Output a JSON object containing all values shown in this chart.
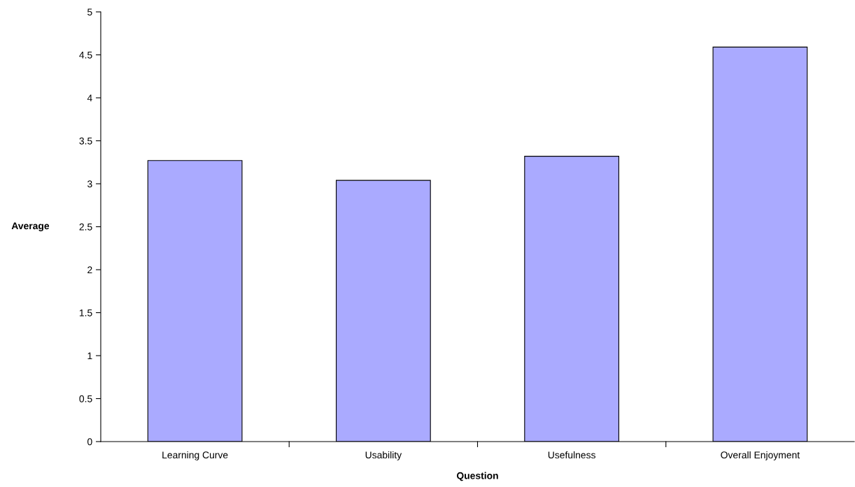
{
  "chart_data": {
    "type": "bar",
    "xlabel": "Question",
    "ylabel": "Average",
    "categories": [
      "Learning Curve",
      "Usability",
      "Usefulness",
      "Overall Enjoyment"
    ],
    "values": [
      3.27,
      3.04,
      3.32,
      4.59
    ],
    "color": "#aaaaff",
    "ylim": [
      0,
      5
    ],
    "yticks": [
      0,
      0.5,
      1,
      1.5,
      2,
      2.5,
      3,
      3.5,
      4,
      4.5,
      5
    ],
    "grid": false,
    "legend": false
  }
}
